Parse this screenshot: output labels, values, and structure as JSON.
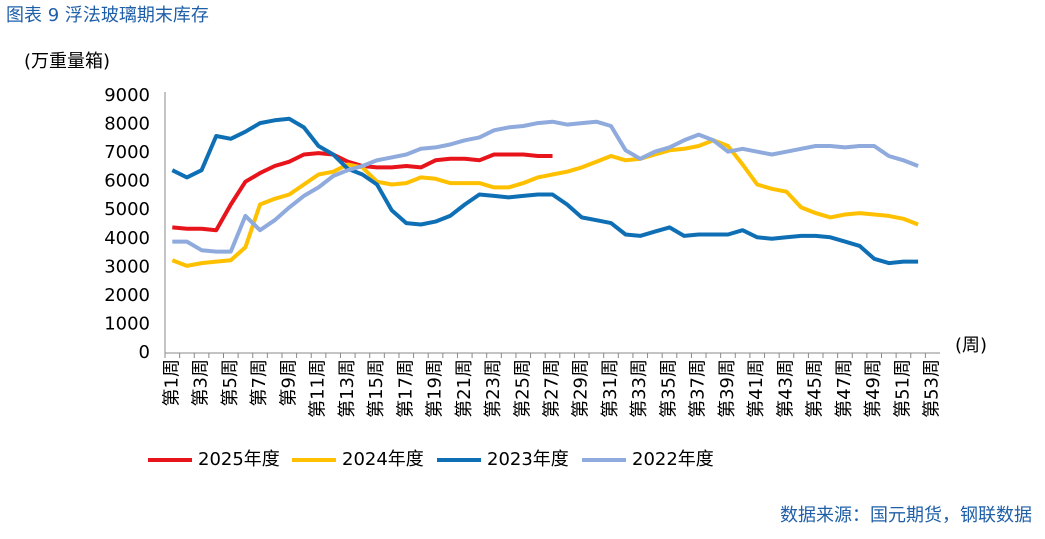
{
  "chart_data": {
    "type": "line",
    "title": "图表 9 浮法玻璃期末库存",
    "y_label": "(万重量箱)",
    "x_label": "(周)",
    "source": "数据来源：国元期货，钢联数据",
    "categories": [
      "第1周",
      null,
      "第3周",
      null,
      "第5周",
      null,
      "第7周",
      null,
      "第9周",
      null,
      "第11周",
      null,
      "第13周",
      null,
      "第15周",
      null,
      "第17周",
      null,
      "第19周",
      null,
      "第21周",
      null,
      "第23周",
      null,
      "第25周",
      null,
      "第27周",
      null,
      "第29周",
      null,
      "第31周",
      null,
      "第33周",
      null,
      "第35周",
      null,
      "第37周",
      null,
      "第39周",
      null,
      "第41周",
      null,
      "第43周",
      null,
      "第45周",
      null,
      "第47周",
      null,
      "第49周",
      null,
      "第51周",
      null,
      "第53周"
    ],
    "series": [
      {
        "name": "2025年度",
        "color": "#e8141b",
        "values": [
          4400,
          4350,
          4350,
          4300,
          5200,
          6000,
          6300,
          6550,
          6700,
          6950,
          7000,
          6950,
          6700,
          6550,
          6500,
          6500,
          6550,
          6500,
          6750,
          6800,
          6800,
          6750,
          6950,
          6950,
          6950,
          6900,
          6900,
          null,
          null,
          null,
          null,
          null,
          null,
          null,
          null,
          null,
          null,
          null,
          null,
          null,
          null,
          null,
          null,
          null,
          null,
          null,
          null,
          null,
          null,
          null,
          null,
          null,
          null
        ]
      },
      {
        "name": "2024年度",
        "color": "#ffc000",
        "values": [
          3250,
          3050,
          3150,
          3200,
          3250,
          3700,
          5200,
          5400,
          5550,
          5900,
          6250,
          6350,
          6600,
          6500,
          6000,
          5900,
          5950,
          6150,
          6100,
          5950,
          5950,
          5950,
          5800,
          5800,
          5950,
          6150,
          6250,
          6350,
          6500,
          6700,
          6900,
          6750,
          6800,
          6950,
          7100,
          7150,
          7250,
          7450,
          7250,
          6600,
          5900,
          5750,
          5650,
          5100,
          4900,
          4750,
          4850,
          4900,
          4850,
          4800,
          4700,
          4500,
          null
        ]
      },
      {
        "name": "2023年度",
        "color": "#0f6fb5",
        "values": [
          6400,
          6150,
          6400,
          7600,
          7500,
          7750,
          8050,
          8150,
          8200,
          7900,
          7250,
          6950,
          6450,
          6250,
          5900,
          5000,
          4550,
          4500,
          4600,
          4800,
          5200,
          5550,
          5500,
          5450,
          5500,
          5550,
          5550,
          5200,
          4750,
          4650,
          4550,
          4150,
          4100,
          4250,
          4400,
          4100,
          4150,
          4150,
          4150,
          4300,
          4050,
          4000,
          4050,
          4100,
          4100,
          4050,
          3900,
          3750,
          3300,
          3150,
          3200,
          3200,
          null
        ]
      },
      {
        "name": "2022年度",
        "color": "#8faadc",
        "values": [
          3900,
          3900,
          3600,
          3550,
          3550,
          4800,
          4300,
          4650,
          5100,
          5500,
          5800,
          6200,
          6400,
          6550,
          6750,
          6850,
          6950,
          7150,
          7200,
          7300,
          7450,
          7550,
          7800,
          7900,
          7950,
          8050,
          8100,
          8000,
          8050,
          8100,
          7950,
          7100,
          6800,
          7050,
          7200,
          7450,
          7650,
          7450,
          7050,
          7150,
          7050,
          6950,
          7050,
          7150,
          7250,
          7250,
          7200,
          7250,
          7250,
          6900,
          6750,
          6550,
          null
        ]
      }
    ],
    "ylim": [
      0,
      9000
    ],
    "yticks": [
      0,
      1000,
      2000,
      3000,
      4000,
      5000,
      6000,
      7000,
      8000,
      9000
    ],
    "legend": "bottom"
  }
}
